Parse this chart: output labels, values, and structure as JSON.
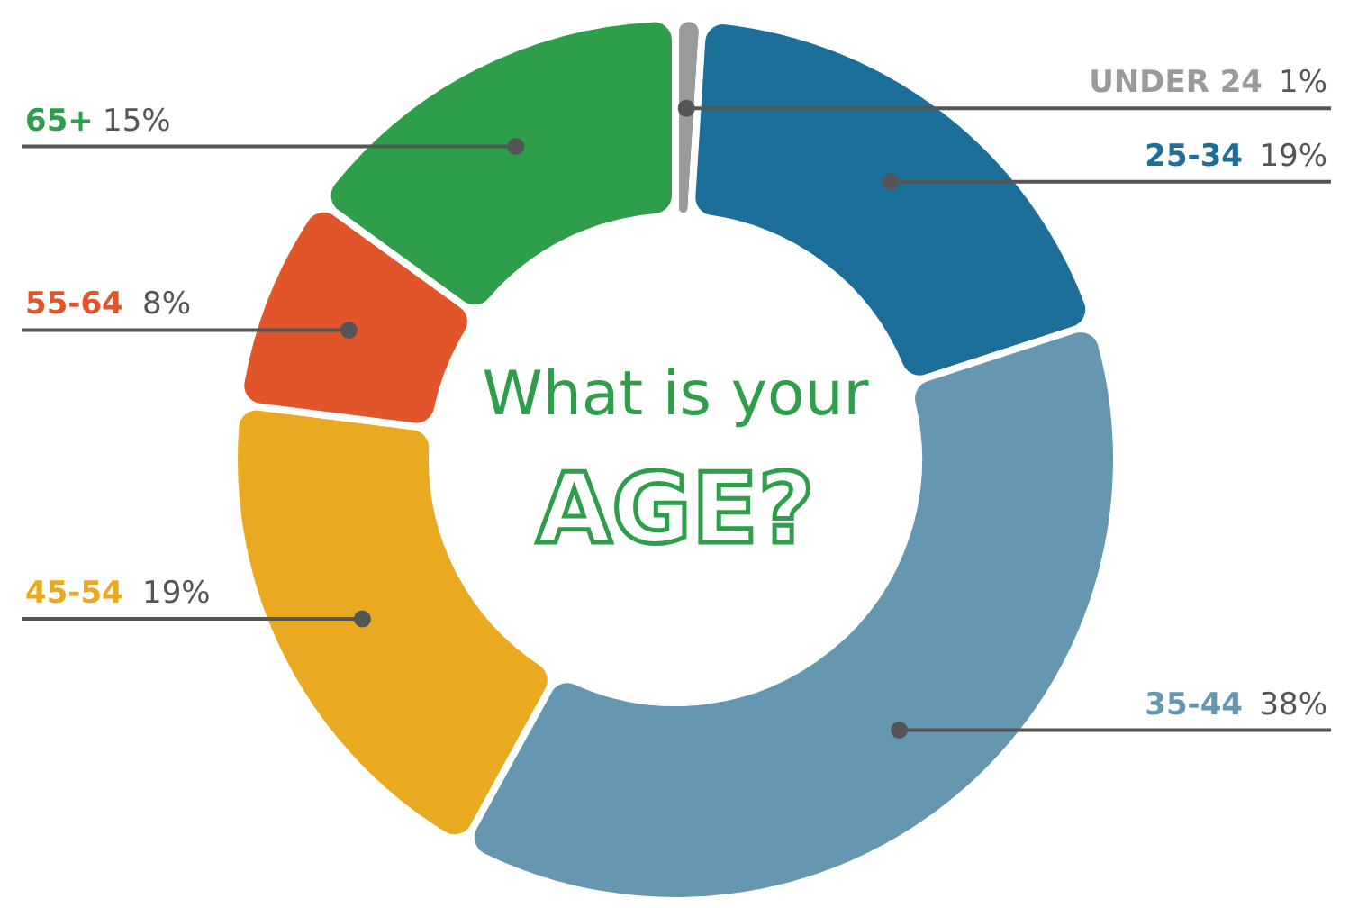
{
  "chart_data": {
    "type": "donut",
    "title": "What is your",
    "subtitle": "AGE?",
    "categories": [
      "UNDER 24",
      "25-34",
      "35-44",
      "45-54",
      "55-64",
      "65+"
    ],
    "values": [
      1,
      19,
      38,
      19,
      8,
      15
    ],
    "value_labels": [
      "1%",
      "19%",
      "38%",
      "19%",
      "8%",
      "15%"
    ],
    "colors": [
      "#9a9a9a",
      "#1b6f99",
      "#6697b1",
      "#e9aa22",
      "#e2542a",
      "#2f9e4a"
    ]
  }
}
